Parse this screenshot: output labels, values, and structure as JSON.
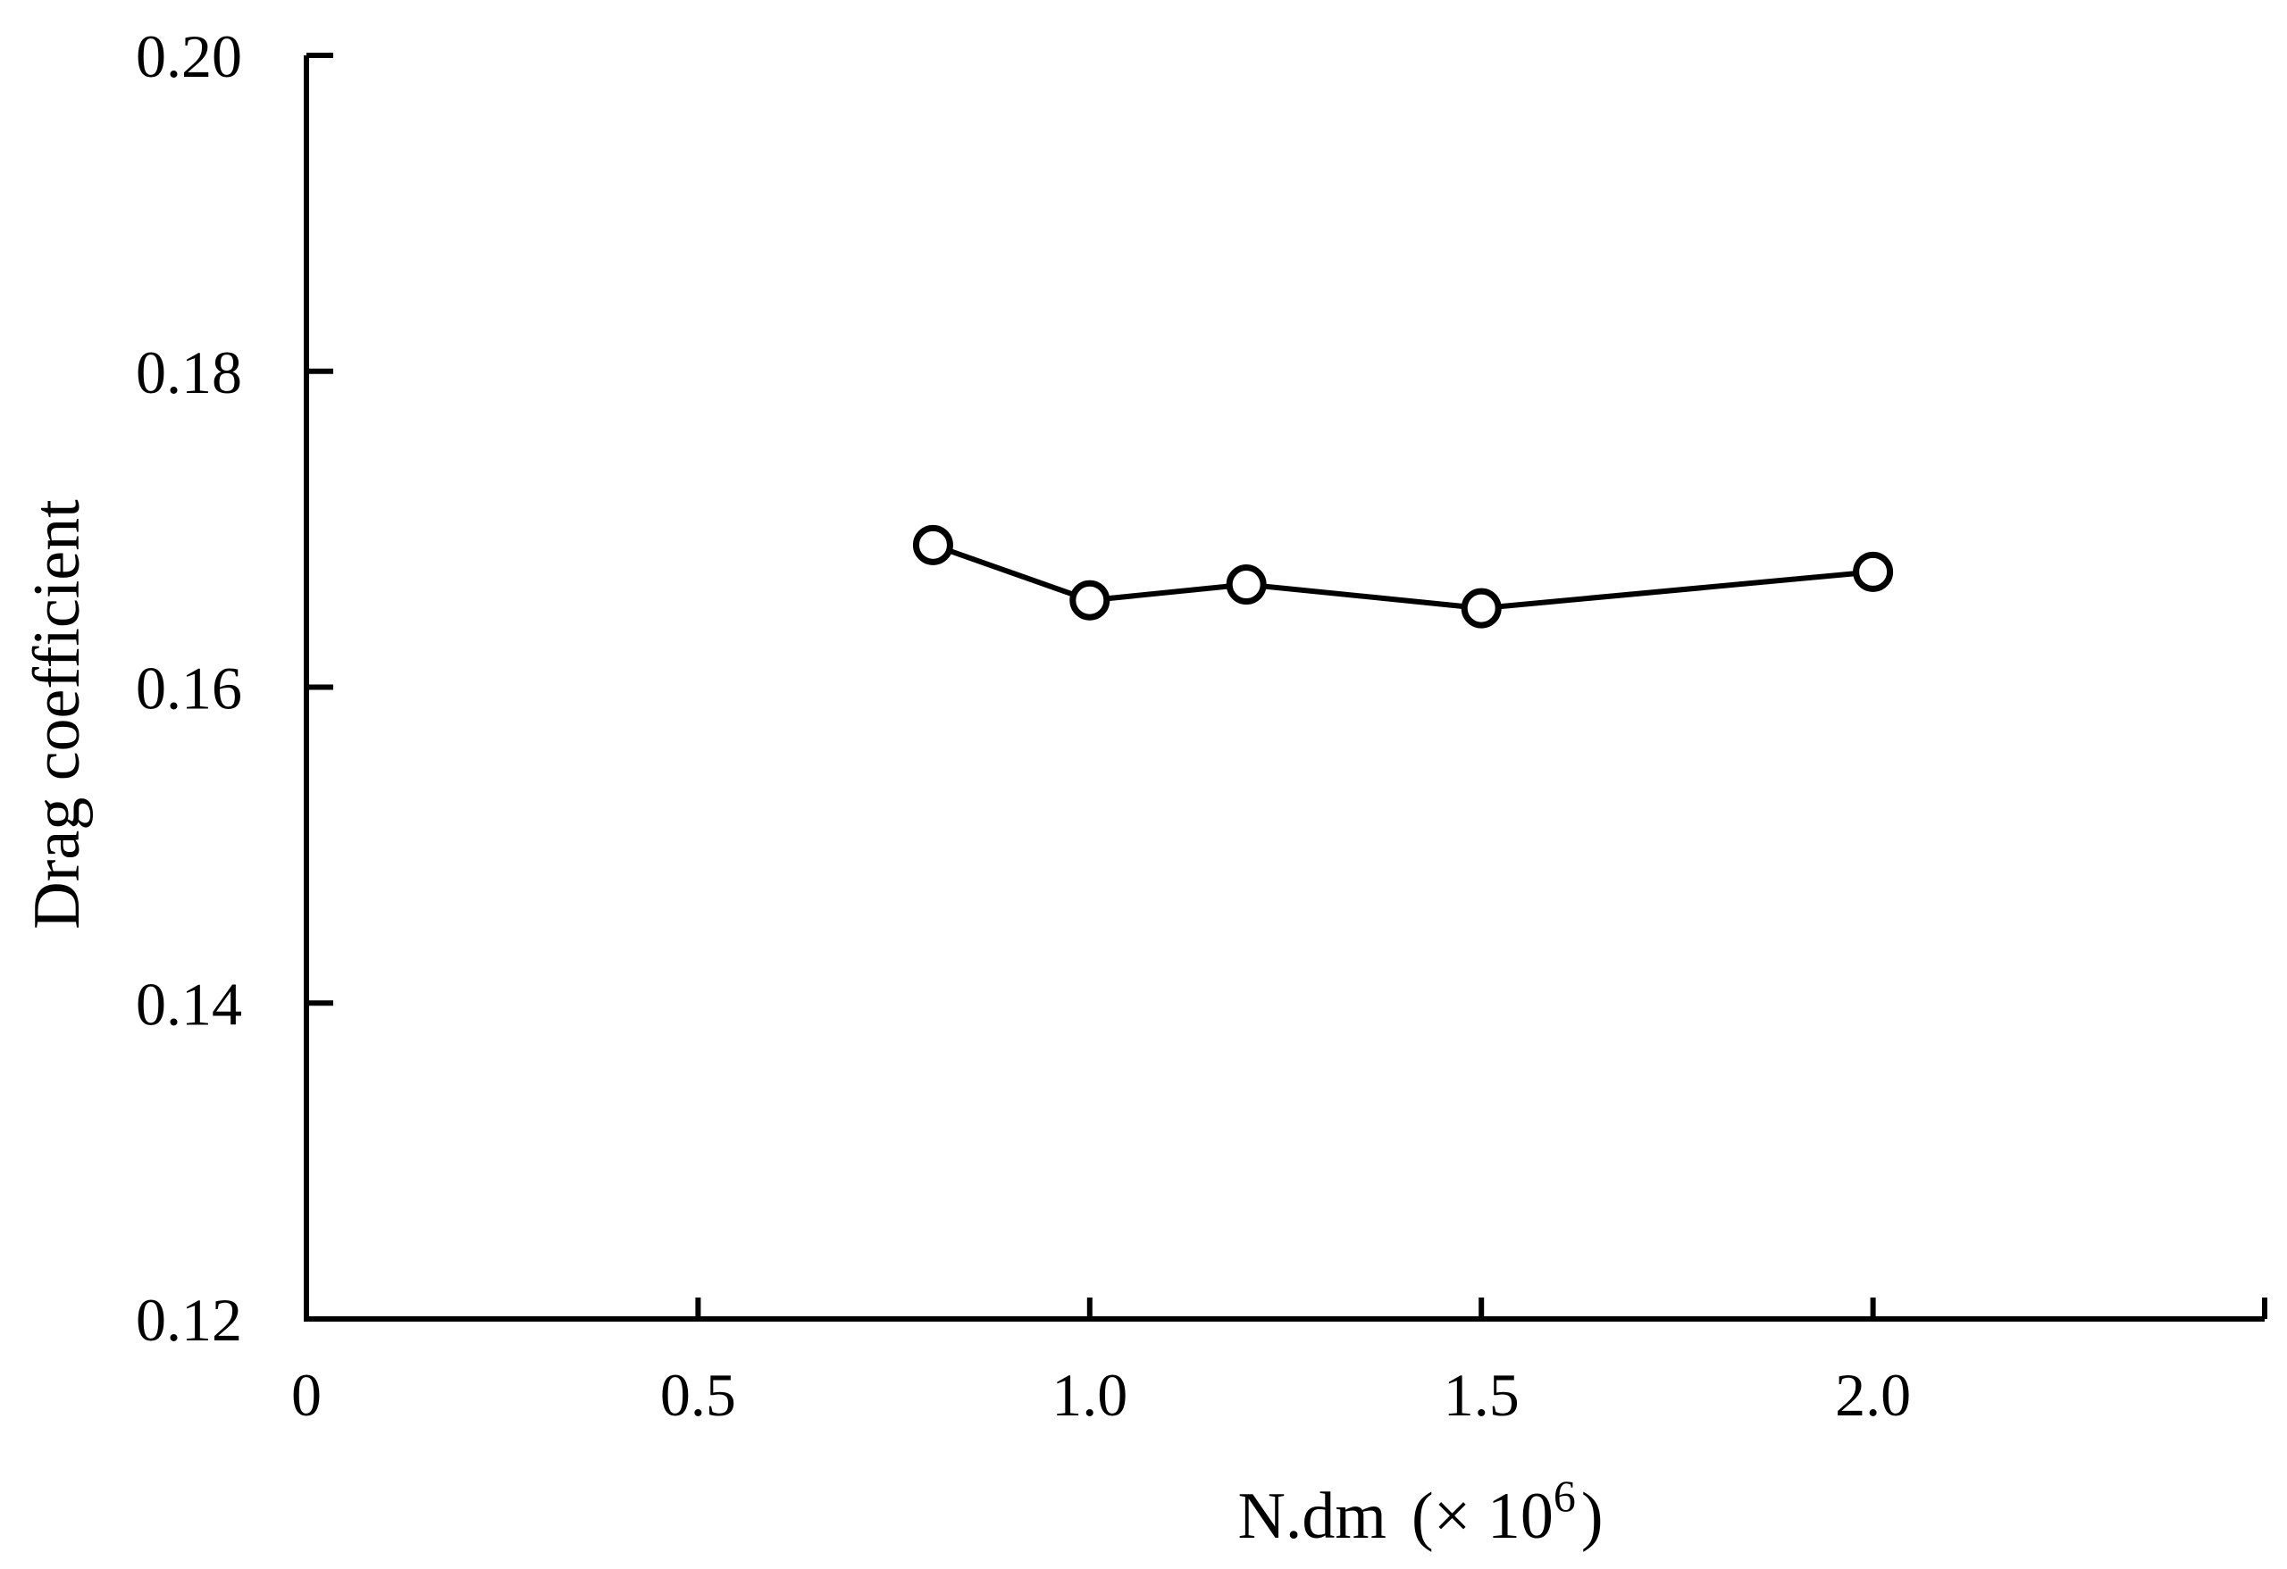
{
  "chart_data": {
    "type": "line",
    "title": "",
    "xlabel_main": "N.dm",
    "xlabel_suffix": "(× 10",
    "xlabel_exponent": "6",
    "xlabel_close": ")",
    "ylabel": "Drag coefficient",
    "xlim": [
      0,
      2.5
    ],
    "ylim": [
      0.12,
      0.2
    ],
    "x_ticks": [
      0,
      0.5,
      1.0,
      1.5,
      2.0,
      2.5
    ],
    "x_tick_labels": [
      "0",
      "0.5",
      "1.0",
      "1.5",
      "2.0"
    ],
    "y_ticks": [
      0.12,
      0.14,
      0.16,
      0.18,
      0.2
    ],
    "y_tick_labels": [
      "0.12",
      "0.14",
      "0.16",
      "0.18",
      "0.20"
    ],
    "grid": false,
    "legend": false,
    "series": [
      {
        "marker": "open-circle",
        "color": "#000000",
        "x": [
          0.8,
          1.0,
          1.2,
          1.5,
          2.0
        ],
        "y": [
          0.169,
          0.1655,
          0.1665,
          0.165,
          0.1673
        ]
      }
    ]
  }
}
